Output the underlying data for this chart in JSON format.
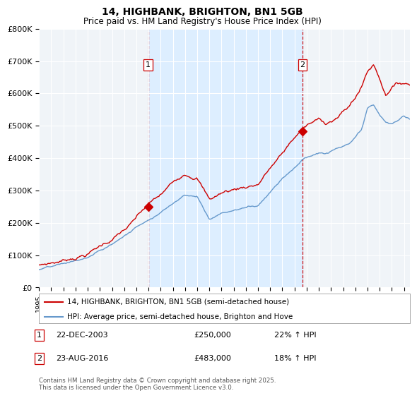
{
  "title": "14, HIGHBANK, BRIGHTON, BN1 5GB",
  "subtitle": "Price paid vs. HM Land Registry's House Price Index (HPI)",
  "ylabel_ticks": [
    "£0",
    "£100K",
    "£200K",
    "£300K",
    "£400K",
    "£500K",
    "£600K",
    "£700K",
    "£800K"
  ],
  "ytick_values": [
    0,
    100000,
    200000,
    300000,
    400000,
    500000,
    600000,
    700000,
    800000
  ],
  "ylim": [
    0,
    800000
  ],
  "xlim_start": 1995.0,
  "xlim_end": 2025.5,
  "red_color": "#cc0000",
  "blue_color": "#6699cc",
  "shade_color": "#ddeeff",
  "bg_color": "#f0f4f8",
  "grid_color": "#cccccc",
  "legend_label_red": "14, HIGHBANK, BRIGHTON, BN1 5GB (semi-detached house)",
  "legend_label_blue": "HPI: Average price, semi-detached house, Brighton and Hove",
  "purchase1_date": "22-DEC-2003",
  "purchase1_price": "£250,000",
  "purchase1_hpi": "22% ↑ HPI",
  "purchase1_x": 2003.97,
  "purchase1_y": 250000,
  "purchase2_date": "23-AUG-2016",
  "purchase2_price": "£483,000",
  "purchase2_hpi": "18% ↑ HPI",
  "purchase2_x": 2016.65,
  "purchase2_y": 483000,
  "footer": "Contains HM Land Registry data © Crown copyright and database right 2025.\nThis data is licensed under the Open Government Licence v3.0.",
  "xtick_years": [
    1995,
    1996,
    1997,
    1998,
    1999,
    2000,
    2001,
    2002,
    2003,
    2004,
    2005,
    2006,
    2007,
    2008,
    2009,
    2010,
    2011,
    2012,
    2013,
    2014,
    2015,
    2016,
    2017,
    2018,
    2019,
    2020,
    2021,
    2022,
    2023,
    2024,
    2025
  ]
}
